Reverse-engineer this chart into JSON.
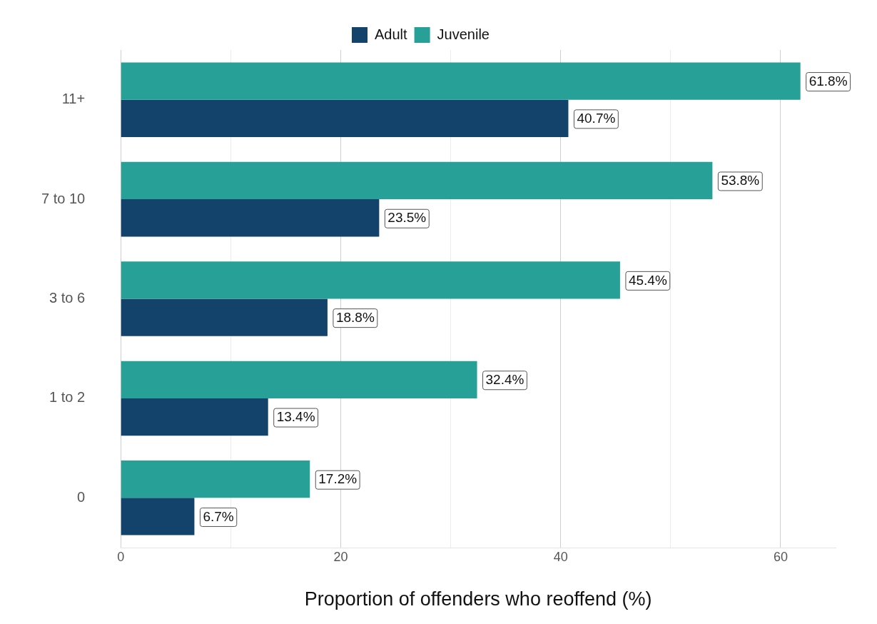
{
  "chart_data": {
    "type": "bar",
    "orientation": "horizontal",
    "xlabel": "Proportion of offenders who reoffend (%)",
    "categories": [
      "11+",
      "7 to 10",
      "3 to 6",
      "1 to 2",
      "0"
    ],
    "series": [
      {
        "name": "Adult",
        "color": "#13436b",
        "values": [
          40.7,
          23.5,
          18.8,
          13.4,
          6.7
        ],
        "value_labels": [
          "40.7%",
          "23.5%",
          "18.8%",
          "13.4%",
          "6.7%"
        ]
      },
      {
        "name": "Juvenile",
        "color": "#27a197",
        "values": [
          61.8,
          53.8,
          45.4,
          32.4,
          17.2
        ],
        "value_labels": [
          "61.8%",
          "53.8%",
          "45.4%",
          "32.4%",
          "17.2%"
        ]
      }
    ],
    "xlim": [
      0,
      65
    ],
    "xticks": [
      0,
      {
        "value": 10,
        "label": null
      },
      20,
      {
        "value": 30,
        "label": null
      },
      40,
      {
        "value": 50,
        "label": null
      },
      60
    ],
    "grid": "x",
    "legend": "top"
  }
}
